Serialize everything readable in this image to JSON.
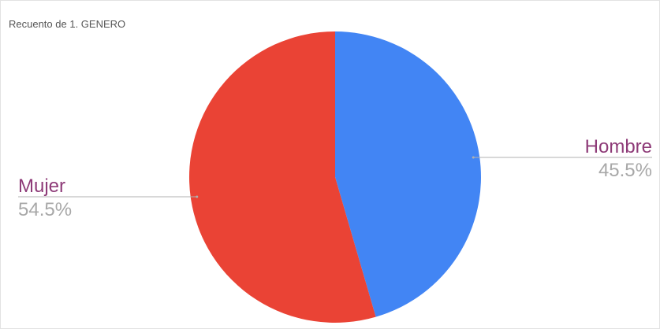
{
  "chart_data": {
    "type": "pie",
    "title": "Recuento de 1. GENERO",
    "slices": [
      {
        "label": "Hombre",
        "value": 45.5,
        "value_label": "45.5%",
        "color": "#4285f4"
      },
      {
        "label": "Mujer",
        "value": 54.5,
        "value_label": "54.5%",
        "color": "#ea4335"
      }
    ],
    "start_angle_deg": 0,
    "direction": "clockwise",
    "label_color": "#8e3b78",
    "value_color": "#a8a8a8",
    "leader_color": "#b0b0b0",
    "legend": "none"
  }
}
